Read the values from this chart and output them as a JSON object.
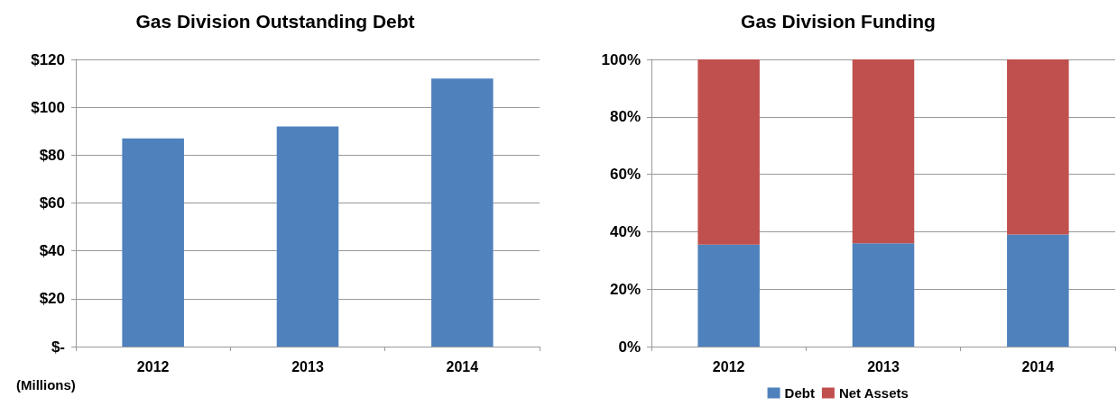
{
  "chart_data": [
    {
      "type": "bar",
      "title": "Gas Division Outstanding Debt",
      "categories": [
        "2012",
        "2013",
        "2014"
      ],
      "values": [
        87,
        92,
        112
      ],
      "color": "#4f81bd",
      "ylim": [
        0,
        120
      ],
      "yticks": [
        {
          "value": 0,
          "label": "$-"
        },
        {
          "value": 20,
          "label": "$20"
        },
        {
          "value": 40,
          "label": "$40"
        },
        {
          "value": 60,
          "label": "$60"
        },
        {
          "value": 80,
          "label": "$80"
        },
        {
          "value": 100,
          "label": "$100"
        },
        {
          "value": 120,
          "label": "$120"
        }
      ],
      "grid": "y",
      "legend": false,
      "annotations": [
        "(Millions)"
      ]
    },
    {
      "type": "bar",
      "title": "Gas Division Funding",
      "categories": [
        "2012",
        "2013",
        "2014"
      ],
      "stacked": true,
      "series": [
        {
          "name": "Debt",
          "color": "#4f81bd",
          "values": [
            35.5,
            36,
            39
          ]
        },
        {
          "name": "Net Assets",
          "color": "#c0504d",
          "values": [
            64.5,
            64,
            61
          ]
        }
      ],
      "ylim": [
        0,
        100
      ],
      "yticks": [
        {
          "value": 0,
          "label": "0%"
        },
        {
          "value": 20,
          "label": "20%"
        },
        {
          "value": 40,
          "label": "40%"
        },
        {
          "value": 60,
          "label": "60%"
        },
        {
          "value": 80,
          "label": "80%"
        },
        {
          "value": 100,
          "label": "100%"
        }
      ],
      "grid": "y",
      "legend": "bottom"
    }
  ]
}
